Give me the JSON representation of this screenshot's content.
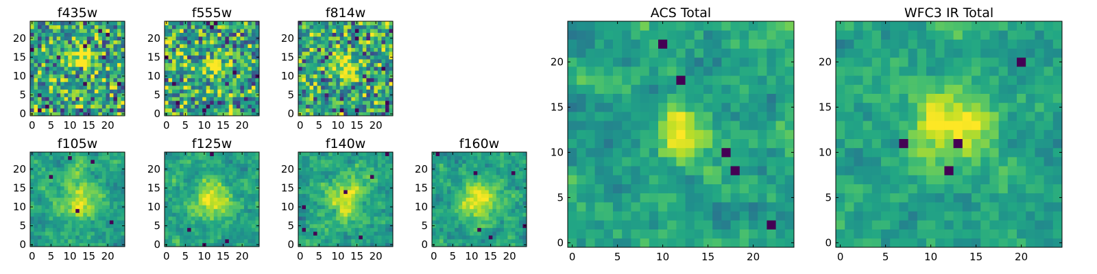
{
  "chart_data": {
    "type": "heatmap",
    "colormap": "viridis",
    "grid_size": 25,
    "panels": [
      {
        "title": "f435w",
        "noise": 0.85,
        "peak": [
          13,
          15
        ],
        "sigma": 2.2,
        "amp": 0.7
      },
      {
        "title": "f555w",
        "noise": 0.85,
        "peak": [
          12,
          13
        ],
        "sigma": 2.2,
        "amp": 0.75
      },
      {
        "title": "f814w",
        "noise": 0.85,
        "peak": [
          12,
          13
        ],
        "sigma": 2.2,
        "amp": 0.8
      },
      {
        "title": "f105w",
        "noise": 0.55,
        "peak": [
          12,
          12
        ],
        "sigma": 3.5,
        "amp": 0.7
      },
      {
        "title": "f125w",
        "noise": 0.55,
        "peak": [
          12,
          12
        ],
        "sigma": 3.5,
        "amp": 0.75
      },
      {
        "title": "f140w",
        "noise": 0.55,
        "peak": [
          12,
          12
        ],
        "sigma": 3.5,
        "amp": 0.7
      },
      {
        "title": "f160w",
        "noise": 0.55,
        "peak": [
          12,
          12
        ],
        "sigma": 3.2,
        "amp": 0.85
      },
      {
        "title": "ACS Total",
        "noise": 0.5,
        "peak": [
          12,
          12
        ],
        "sigma": 1.8,
        "amp": 0.9
      },
      {
        "title": "WFC3 IR Total",
        "noise": 0.4,
        "peak": [
          12,
          13
        ],
        "sigma": 2.6,
        "amp": 0.9
      }
    ],
    "small_ticks": [
      0,
      5,
      10,
      15,
      20
    ],
    "large_ticks": [
      0,
      5,
      10,
      15,
      20
    ],
    "xlim": [
      0,
      25
    ],
    "ylim": [
      0,
      25
    ]
  }
}
